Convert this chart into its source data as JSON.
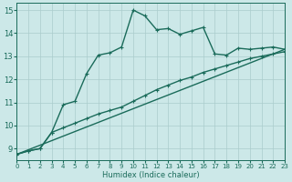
{
  "xlabel": "Humidex (Indice chaleur)",
  "bg_color": "#cce8e8",
  "grid_color": "#aacccc",
  "line_color": "#1a6b5a",
  "xlim": [
    0,
    23
  ],
  "ylim": [
    8.5,
    15.3
  ],
  "xticks": [
    0,
    1,
    2,
    3,
    4,
    5,
    6,
    7,
    8,
    9,
    10,
    11,
    12,
    13,
    14,
    15,
    16,
    17,
    18,
    19,
    20,
    21,
    22,
    23
  ],
  "yticks": [
    9,
    10,
    11,
    12,
    13,
    14,
    15
  ],
  "series1_x": [
    0,
    1,
    2,
    3,
    4,
    5,
    6,
    7,
    8,
    9,
    10,
    11,
    12,
    13,
    14,
    15,
    16,
    17,
    18,
    19,
    20,
    21,
    22,
    23
  ],
  "series1_y": [
    8.75,
    8.9,
    9.0,
    9.7,
    10.9,
    11.05,
    12.25,
    13.05,
    13.15,
    13.4,
    15.0,
    14.75,
    14.15,
    14.2,
    13.95,
    14.1,
    14.25,
    13.1,
    13.05,
    13.35,
    13.3,
    13.35,
    13.4,
    13.3
  ],
  "series2_x": [
    0,
    1,
    2,
    3,
    4,
    5,
    6,
    7,
    8,
    9,
    10,
    11,
    12,
    13,
    14,
    15,
    16,
    17,
    18,
    19,
    20,
    21,
    22,
    23
  ],
  "series2_y": [
    8.75,
    8.9,
    9.0,
    9.7,
    9.9,
    10.1,
    10.3,
    10.5,
    10.65,
    10.8,
    11.05,
    11.3,
    11.55,
    11.75,
    11.95,
    12.1,
    12.3,
    12.45,
    12.6,
    12.75,
    12.9,
    13.0,
    13.1,
    13.2
  ],
  "series3_x": [
    0,
    23
  ],
  "series3_y": [
    8.75,
    13.3
  ],
  "marker_size": 2.5,
  "linewidth": 1.0
}
